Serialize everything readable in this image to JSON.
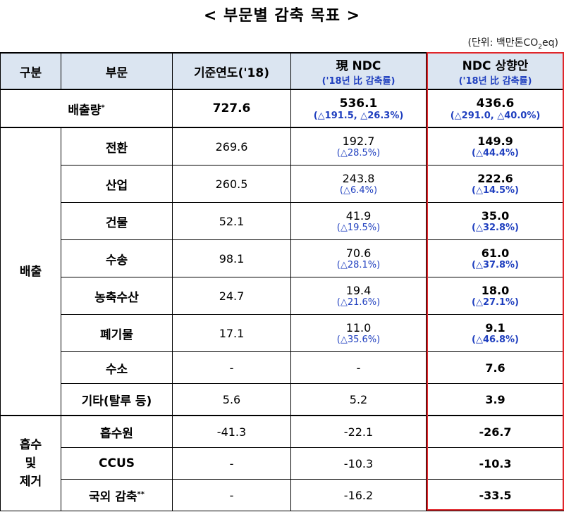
{
  "title": "< 부문별 감축 목표 >",
  "unit": {
    "prefix": "(단위: 백만톤CO",
    "sub": "2",
    "suffix": "eq)"
  },
  "header": {
    "gubun": "구분",
    "sector": "부문",
    "base": "기준연도('18)",
    "cur_title": "現 NDC",
    "cur_sub": "('18년 比 감축률)",
    "new_title": "NDC 상향안",
    "new_sub": "('18년 比 감축률)"
  },
  "total": {
    "label": "배출량",
    "mark": "*",
    "base": "727.6",
    "cur": "536.1",
    "cur_pct": "(△191.5,  △26.3%)",
    "new": "436.6",
    "new_pct": "(△291.0,  △40.0%)"
  },
  "groups": {
    "emission": "배출",
    "absorb": [
      "흡수",
      "및",
      "제거"
    ]
  },
  "emission_rows": [
    {
      "sector": "전환",
      "base": "269.6",
      "cur": "192.7",
      "cur_pct": "(△28.5%)",
      "new": "149.9",
      "new_pct": "(△44.4%)"
    },
    {
      "sector": "산업",
      "base": "260.5",
      "cur": "243.8",
      "cur_pct": "(△6.4%)",
      "new": "222.6",
      "new_pct": "(△14.5%)"
    },
    {
      "sector": "건물",
      "base": "52.1",
      "cur": "41.9",
      "cur_pct": "(△19.5%)",
      "new": "35.0",
      "new_pct": "(△32.8%)"
    },
    {
      "sector": "수송",
      "base": "98.1",
      "cur": "70.6",
      "cur_pct": "(△28.1%)",
      "new": "61.0",
      "new_pct": "(△37.8%)"
    },
    {
      "sector": "농축수산",
      "base": "24.7",
      "cur": "19.4",
      "cur_pct": "(△21.6%)",
      "new": "18.0",
      "new_pct": "(△27.1%)"
    },
    {
      "sector": "폐기물",
      "base": "17.1",
      "cur": "11.0",
      "cur_pct": "(△35.6%)",
      "new": "9.1",
      "new_pct": "(△46.8%)"
    }
  ],
  "simple_rows": [
    {
      "sector": "수소",
      "base": "-",
      "cur": "-",
      "new": "7.6"
    },
    {
      "sector": "기타(탈루 등)",
      "base": "5.6",
      "cur": "5.2",
      "new": "3.9"
    }
  ],
  "absorb_rows": [
    {
      "sector": "흡수원",
      "base": "-41.3",
      "cur": "-22.1",
      "new": "-26.7"
    },
    {
      "sector": "CCUS",
      "base": "-",
      "cur": "-10.3",
      "new": "-10.3"
    },
    {
      "sector": "국외 감축",
      "mark": "**",
      "base": "-",
      "cur": "-16.2",
      "new": "-33.5"
    }
  ],
  "accent": "#e0262b",
  "header_bg": "#dbe5f1",
  "pct_color": "#1f3fbf"
}
